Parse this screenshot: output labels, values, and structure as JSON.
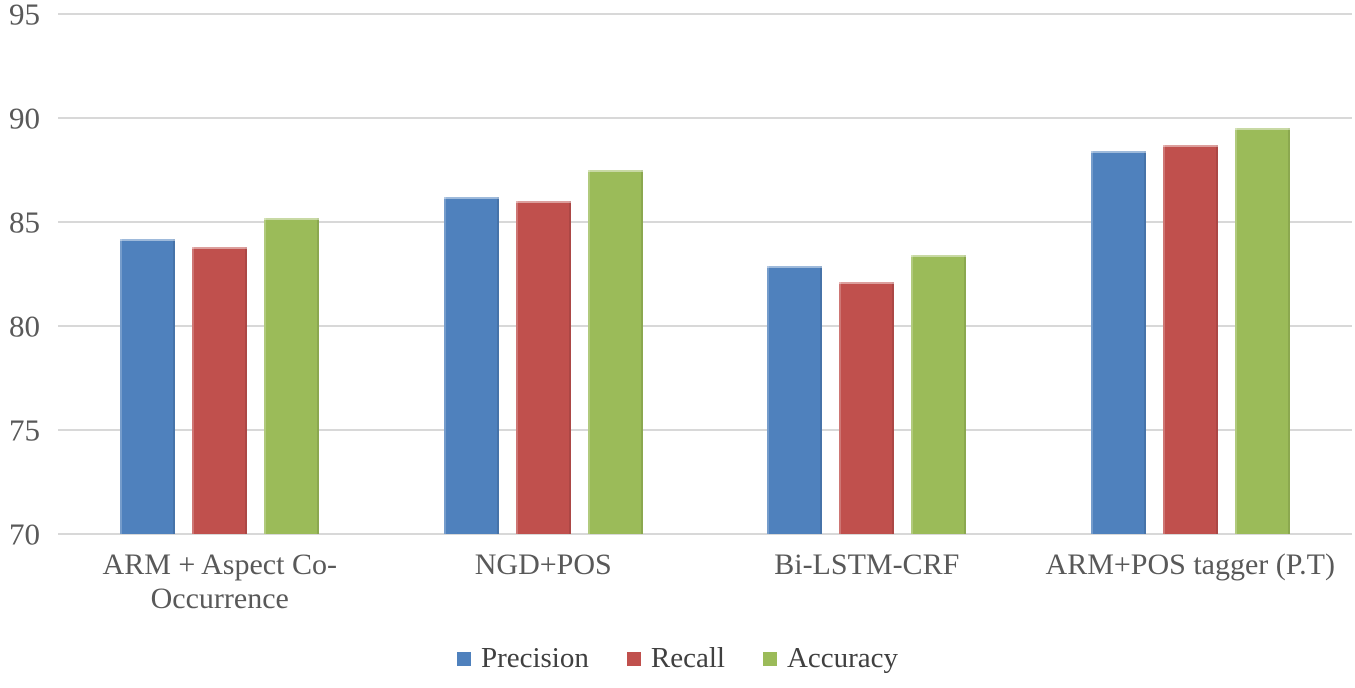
{
  "chart_data": {
    "type": "bar",
    "title": "",
    "xlabel": "",
    "ylabel": "",
    "categories": [
      "ARM + Aspect Co-Occurrence",
      "NGD+POS",
      "Bi-LSTM-CRF",
      "ARM+POS tagger (P.T)"
    ],
    "series": [
      {
        "name": "Precision",
        "color": "#4F81BD",
        "values": [
          84.2,
          86.2,
          82.9,
          88.4
        ]
      },
      {
        "name": "Recall",
        "color": "#C0504D",
        "values": [
          83.8,
          86.0,
          82.1,
          88.7
        ]
      },
      {
        "name": "Accuracy",
        "color": "#9BBB59",
        "values": [
          85.2,
          87.5,
          83.4,
          89.5
        ]
      }
    ],
    "ylim": [
      70,
      95
    ],
    "yticks": [
      70,
      75,
      80,
      85,
      90,
      95
    ],
    "grid": true,
    "legend_position": "bottom"
  },
  "colors": {
    "gridline": "#D8D8D8",
    "axis_text": "#595959",
    "background": "#FFFFFF"
  }
}
